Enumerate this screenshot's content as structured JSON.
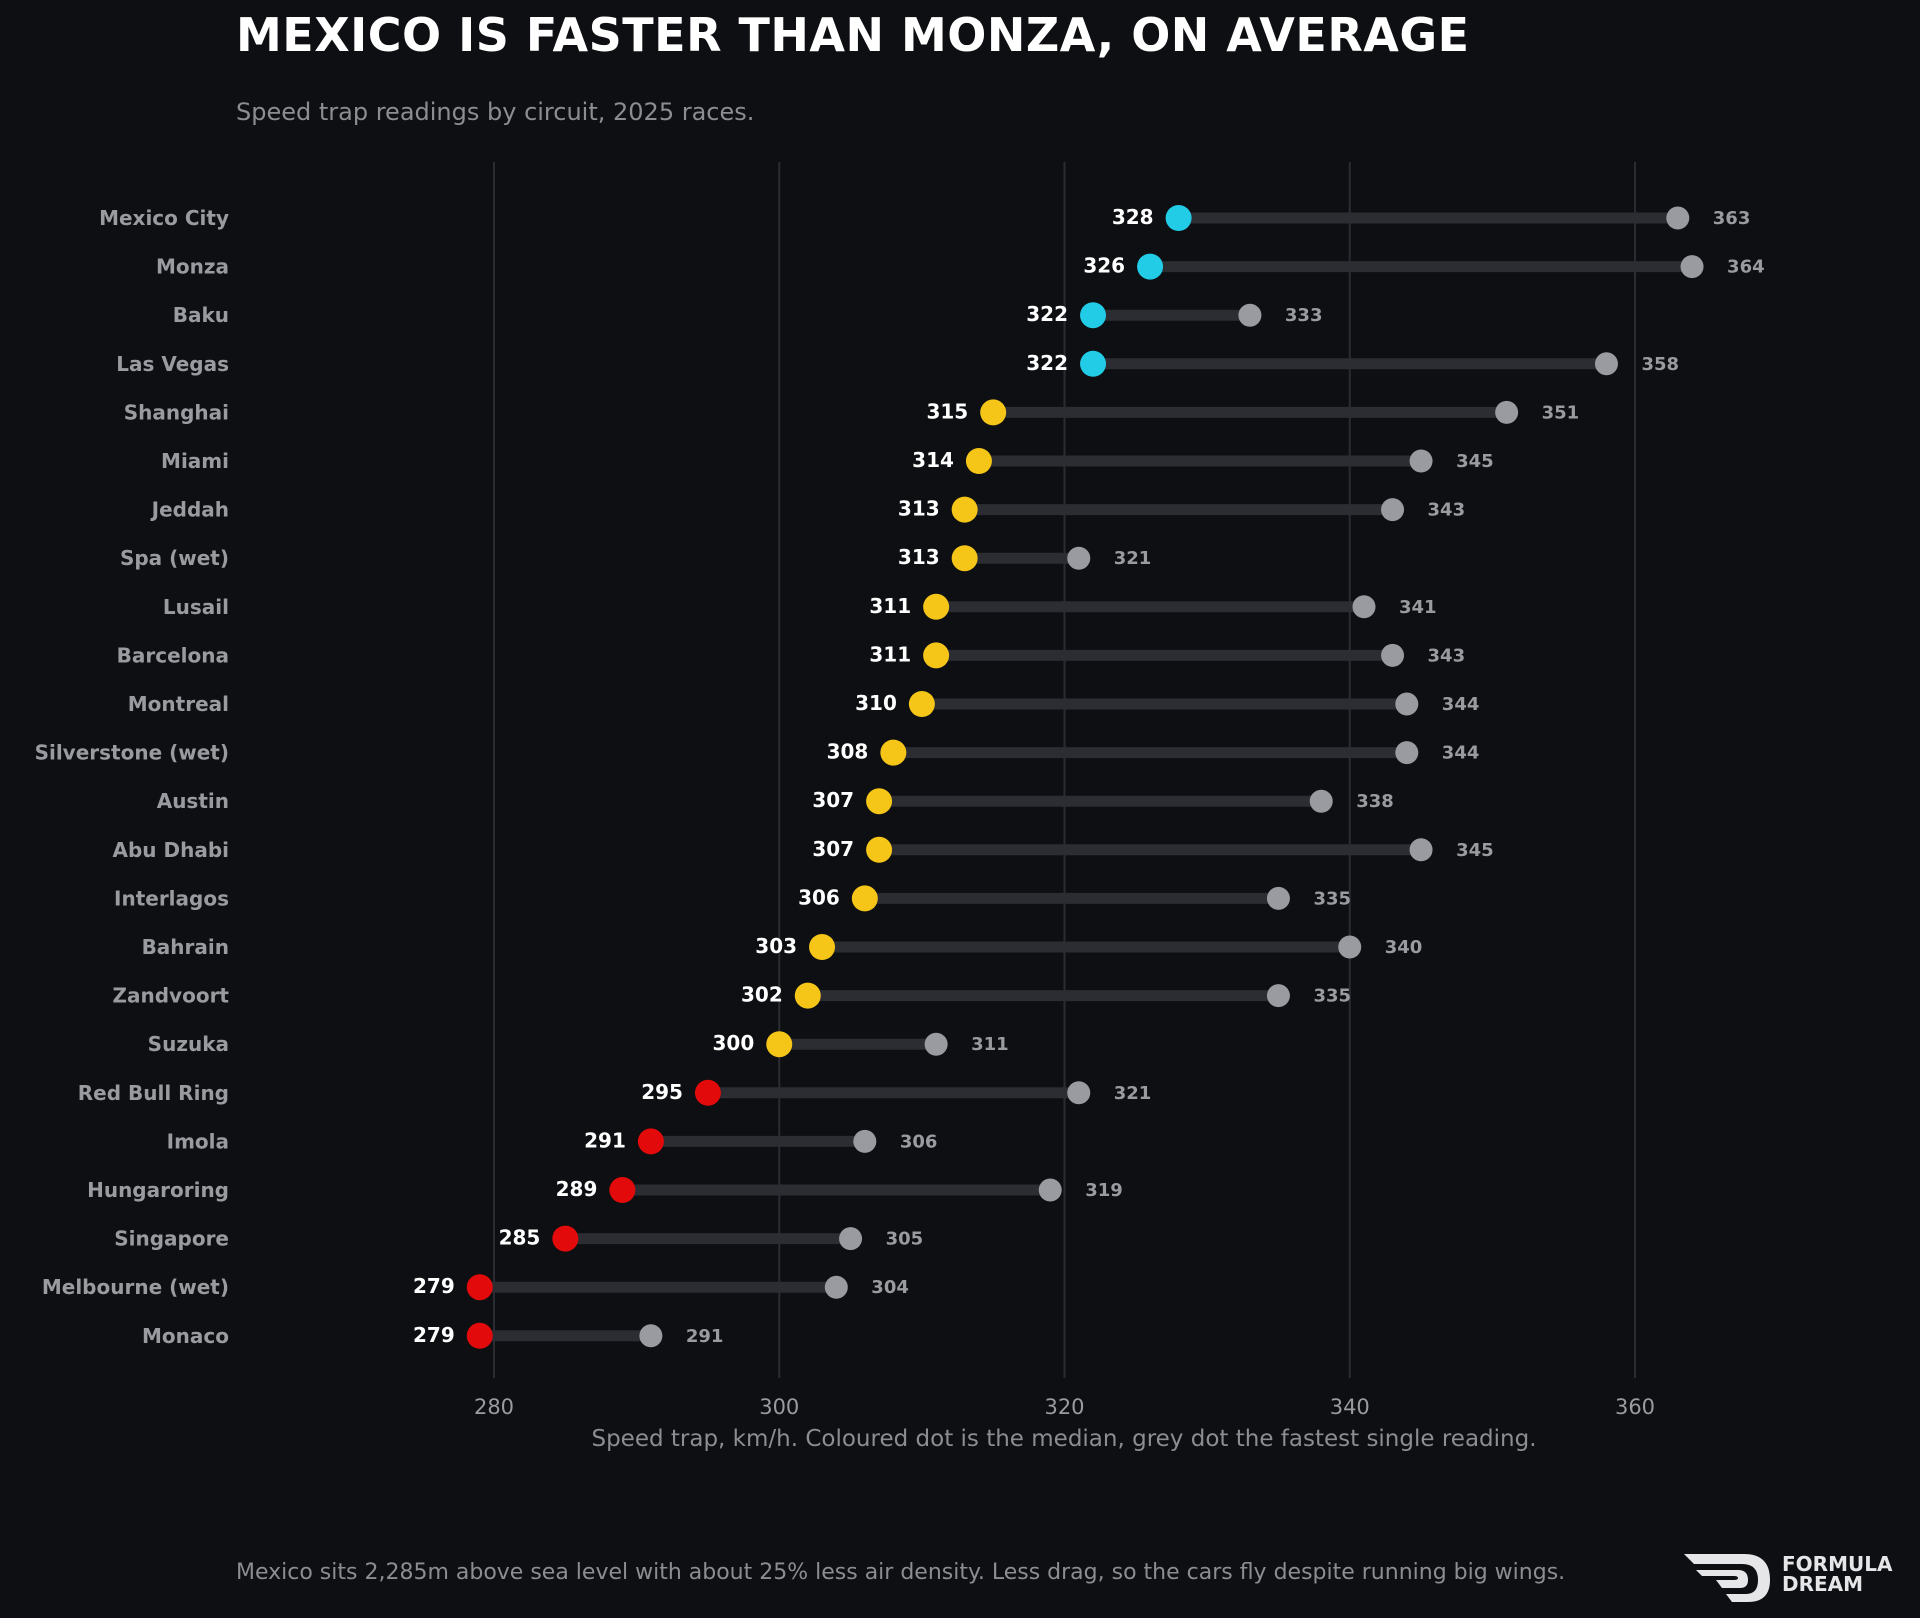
{
  "title": "MEXICO IS FASTER THAN MONZA, ON AVERAGE",
  "subtitle": "Speed trap readings by circuit, 2025 races.",
  "footnote": "Mexico sits 2,285m above sea level with about 25% less air density. Less drag, so the cars fly despite running big wings.",
  "logo": {
    "line1": "FORMULA",
    "line2": "DREAM"
  },
  "colors": {
    "background": "#0d0f12",
    "fast": "#22cbe6",
    "mid": "#f5c518",
    "slow": "#e20a0a",
    "max_dot": "#9a9ba0",
    "bar": "#2b2d33",
    "grid": "#2a2c31"
  },
  "chart_data": {
    "type": "dumbbell",
    "xlabel": "Speed trap, km/h. Coloured dot is the median, grey dot the fastest single reading.",
    "xlim": [
      262,
      380
    ],
    "xticks": [
      280,
      300,
      320,
      340,
      360
    ],
    "grid": "vertical",
    "categories": [
      "Mexico City",
      "Monza",
      "Baku",
      "Las Vegas",
      "Shanghai",
      "Miami",
      "Jeddah",
      "Spa  (wet)",
      "Lusail",
      "Barcelona",
      "Montreal",
      "Silverstone  (wet)",
      "Austin",
      "Abu Dhabi",
      "Interlagos",
      "Bahrain",
      "Zandvoort",
      "Suzuka",
      "Red Bull Ring",
      "Imola",
      "Hungaroring",
      "Singapore",
      "Melbourne  (wet)",
      "Monaco"
    ],
    "series": [
      {
        "key": "median",
        "values": [
          328,
          326,
          322,
          322,
          315,
          314,
          313,
          313,
          311,
          311,
          310,
          308,
          307,
          307,
          306,
          303,
          302,
          300,
          295,
          291,
          289,
          285,
          279,
          279
        ]
      },
      {
        "key": "max",
        "values": [
          363,
          364,
          333,
          358,
          351,
          345,
          343,
          321,
          341,
          343,
          344,
          344,
          338,
          345,
          335,
          340,
          335,
          311,
          321,
          306,
          319,
          305,
          304,
          291
        ]
      }
    ]
  }
}
